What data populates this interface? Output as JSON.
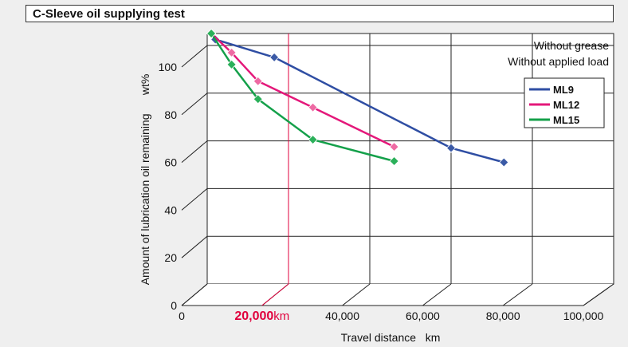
{
  "header": {
    "title": "C-Sleeve oil supplying test"
  },
  "chart_data": {
    "type": "line",
    "title": "C-Sleeve oil supplying test",
    "xlabel": "Travel distance   km",
    "ylabel": "Amount of lubrication oil remaining      wt%",
    "xlim": [
      0,
      100000
    ],
    "ylim": [
      0,
      105
    ],
    "x_ticks": [
      "0",
      "",
      "40,000",
      "60,000",
      "80,000",
      "100,000"
    ],
    "y_ticks": [
      "0",
      "20",
      "40",
      "60",
      "80",
      "100"
    ],
    "grid": true,
    "legend_position": "right",
    "marker_label": {
      "value": "20,000",
      "unit": "km",
      "x": 20000,
      "color": "#e0003c"
    },
    "notes": [
      "Without grease",
      "Without applied load"
    ],
    "series": [
      {
        "name": "ML9",
        "color": "#2f4ea3",
        "marker_color": "#3b5aa6",
        "points": [
          [
            1000,
            105
          ],
          [
            2000,
            102.5
          ],
          [
            16500,
            95
          ],
          [
            60000,
            57
          ],
          [
            73000,
            51
          ]
        ]
      },
      {
        "name": "ML12",
        "color": "#e4187a",
        "marker_color": "#ee6aa3",
        "points": [
          [
            1000,
            105
          ],
          [
            6000,
            97
          ],
          [
            12500,
            85
          ],
          [
            26000,
            74
          ],
          [
            46000,
            57.5
          ]
        ]
      },
      {
        "name": "ML15",
        "color": "#14a04a",
        "marker_color": "#2bb05a",
        "points": [
          [
            1000,
            105
          ],
          [
            6000,
            92
          ],
          [
            12500,
            77.5
          ],
          [
            26000,
            60.5
          ],
          [
            46000,
            51.5
          ]
        ]
      }
    ]
  }
}
